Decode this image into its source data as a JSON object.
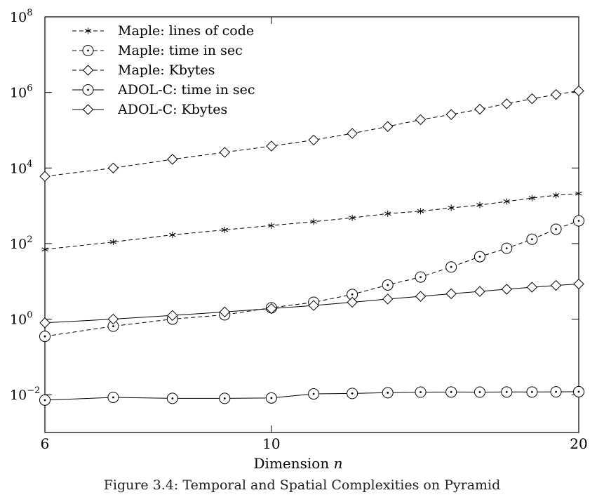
{
  "figure": {
    "caption": "Figure 3.4: Temporal and Spatial Complexities on Pyramid"
  },
  "chart_data": {
    "type": "line",
    "xlabel": "Dimension n",
    "xscale": "log",
    "yscale": "log",
    "xlim": [
      6,
      20
    ],
    "ylim": [
      0.001,
      100000000
    ],
    "x_ticks": [
      {
        "value": 6,
        "label": "6"
      },
      {
        "value": 10,
        "label": "10"
      },
      {
        "value": 20,
        "label": "20"
      }
    ],
    "y_ticks": [
      {
        "value": 0.01,
        "base": "10",
        "exp": "−2"
      },
      {
        "value": 1,
        "base": "10",
        "exp": "0"
      },
      {
        "value": 100,
        "base": "10",
        "exp": "2"
      },
      {
        "value": 10000,
        "base": "10",
        "exp": "4"
      },
      {
        "value": 1000000,
        "base": "10",
        "exp": "6"
      },
      {
        "value": 100000000,
        "base": "10",
        "exp": "8"
      }
    ],
    "legend_position": "top-left",
    "x": [
      6,
      7,
      8,
      9,
      10,
      11,
      12,
      13,
      14,
      15,
      16,
      17,
      18,
      19,
      20
    ],
    "series": [
      {
        "name": "Maple: lines of code",
        "line": "dashed",
        "marker": "star",
        "values": [
          70,
          110,
          170,
          230,
          300,
          380,
          480,
          620,
          720,
          880,
          1050,
          1300,
          1600,
          1900,
          2100
        ]
      },
      {
        "name": "Maple: time in sec",
        "line": "dashed",
        "marker": "circle-dot",
        "values": [
          0.35,
          0.65,
          1.0,
          1.3,
          2.0,
          2.8,
          4.5,
          8,
          13,
          24,
          45,
          75,
          130,
          240,
          400
        ]
      },
      {
        "name": "Maple: Kbytes",
        "line": "dashed",
        "marker": "diamond",
        "values": [
          6000,
          10000,
          17000,
          26000,
          38000,
          55000,
          82000,
          125000,
          190000,
          260000,
          360000,
          500000,
          680000,
          880000,
          1100000
        ]
      },
      {
        "name": "ADOL-C: time in sec",
        "line": "solid",
        "marker": "circle-dot",
        "values": [
          0.0072,
          0.0085,
          0.008,
          0.008,
          0.0082,
          0.0105,
          0.0108,
          0.0113,
          0.0117,
          0.0118,
          0.0117,
          0.0118,
          0.0118,
          0.0119,
          0.012
        ]
      },
      {
        "name": "ADOL-C: Kbytes",
        "line": "solid",
        "marker": "diamond",
        "values": [
          0.8,
          1.0,
          1.25,
          1.55,
          1.9,
          2.3,
          2.8,
          3.4,
          4.0,
          4.7,
          5.4,
          6.2,
          7.0,
          7.8,
          8.5
        ]
      }
    ]
  }
}
